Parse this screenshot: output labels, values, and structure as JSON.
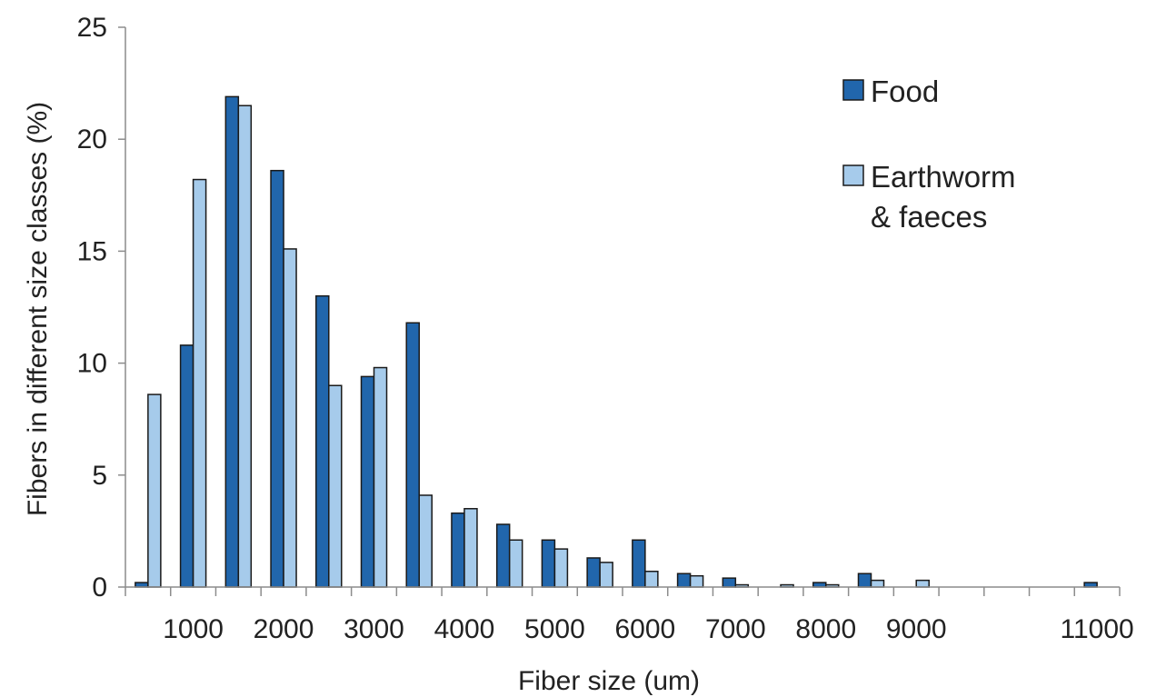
{
  "chart_data": {
    "type": "bar",
    "title": "",
    "xlabel": "Fiber size (um)",
    "ylabel": "Fibers in different size classes (%)",
    "ylim": [
      0,
      25
    ],
    "yticks": [
      0,
      5,
      10,
      15,
      20,
      25
    ],
    "xtick_labels": [
      "1000",
      "2000",
      "3000",
      "4000",
      "5000",
      "6000",
      "7000",
      "8000",
      "9000",
      "11000"
    ],
    "categories": [
      "500",
      "1000",
      "1500",
      "2000",
      "2500",
      "3000",
      "3500",
      "4000",
      "4500",
      "5000",
      "5500",
      "6000",
      "6500",
      "7000",
      "7500",
      "8000",
      "8500",
      "9000",
      "9500",
      "10000",
      "10500",
      "11000"
    ],
    "series": [
      {
        "name": "Food",
        "color": "#2166ac",
        "values": [
          0.2,
          10.8,
          21.9,
          18.6,
          13.0,
          9.4,
          11.8,
          3.3,
          2.8,
          2.1,
          1.3,
          2.1,
          0.6,
          0.4,
          0.0,
          0.2,
          0.6,
          0.0,
          0.0,
          0.0,
          0.0,
          0.2
        ]
      },
      {
        "name": "Earthworm\n& faeces",
        "color": "#a6cbeb",
        "values": [
          8.6,
          18.2,
          21.5,
          15.1,
          9.0,
          9.8,
          4.1,
          3.5,
          2.1,
          1.7,
          1.1,
          0.7,
          0.5,
          0.1,
          0.1,
          0.1,
          0.3,
          0.3,
          0.0,
          0.0,
          0.0,
          0.0
        ]
      }
    ],
    "grid": false,
    "legend": "top-right"
  },
  "legend": {
    "items": [
      {
        "lines": [
          "Food"
        ],
        "color": "#2166ac"
      },
      {
        "lines": [
          "Earthworm",
          "& faeces"
        ],
        "color": "#a6cbeb"
      }
    ]
  }
}
